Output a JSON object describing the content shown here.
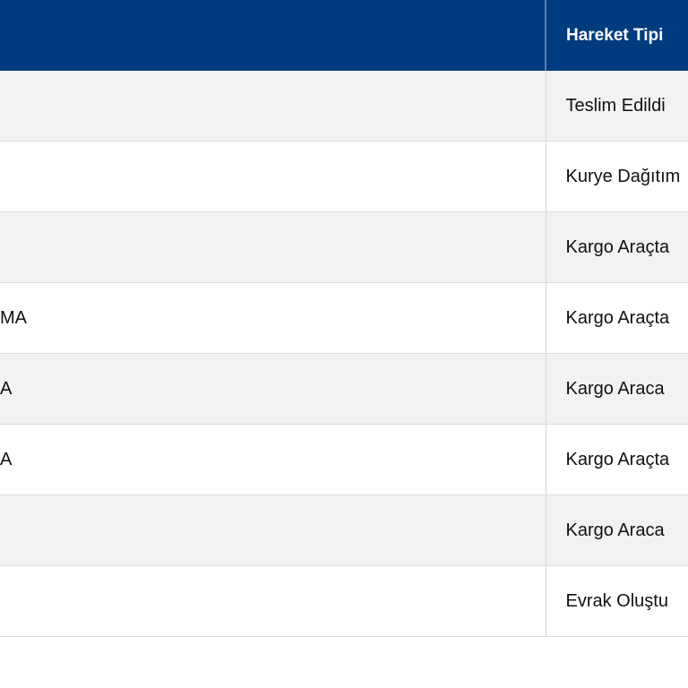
{
  "table": {
    "headers": [
      "",
      "Hareket Tipi"
    ],
    "rows": [
      {
        "c1": "",
        "c2": "Teslim Edildi"
      },
      {
        "c1": "",
        "c2": "Kurye Dağıtım"
      },
      {
        "c1": "",
        "c2": "Kargo Araçta"
      },
      {
        "c1": "MA",
        "c2": "Kargo Araçta"
      },
      {
        "c1": "A",
        "c2": "Kargo Araca"
      },
      {
        "c1": "A",
        "c2": "Kargo Araçta"
      },
      {
        "c1": "",
        "c2": "Kargo Araca"
      },
      {
        "c1": "",
        "c2": "Evrak Oluştu"
      }
    ]
  },
  "colors": {
    "header_bg": "#003b7f",
    "row_alt_bg": "#f2f2f2"
  }
}
